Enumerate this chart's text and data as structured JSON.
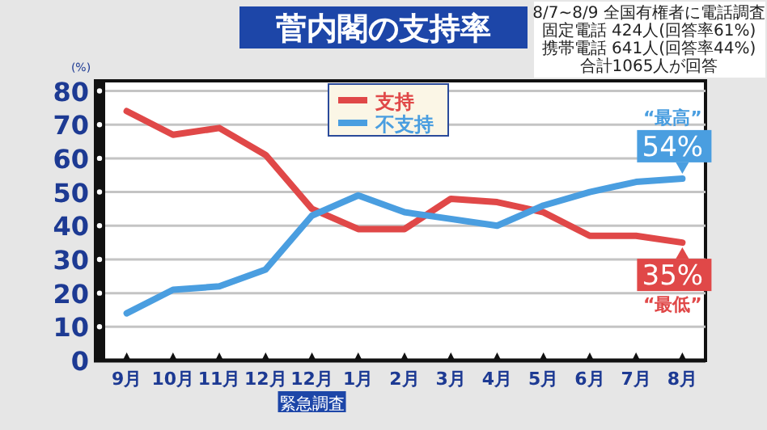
{
  "chart_data": {
    "type": "line",
    "title": "菅内閣の支持率",
    "ylabel": "(%)",
    "categories": [
      "9月",
      "10月",
      "11月",
      "12月",
      "12月緊急調査",
      "1月",
      "2月",
      "3月",
      "4月",
      "5月",
      "6月",
      "7月",
      "8月"
    ],
    "series": [
      {
        "name": "支持",
        "color": "#e04848",
        "values": [
          74,
          67,
          69,
          61,
          45,
          39,
          39,
          48,
          47,
          44,
          37,
          37,
          35
        ]
      },
      {
        "name": "不支持",
        "color": "#4a9ee0",
        "values": [
          14,
          21,
          22,
          27,
          43,
          49,
          44,
          42,
          40,
          46,
          50,
          53,
          54
        ]
      }
    ],
    "ylim": [
      0,
      83
    ],
    "yticks": [
      0,
      10,
      20,
      30,
      40,
      50,
      60,
      70,
      80
    ],
    "grid": "y",
    "legend": "top",
    "marker": "none",
    "line_style": "solid",
    "annotations": [
      {
        "text": "“最高”",
        "x": "8月",
        "y": 54
      },
      {
        "text": "54%",
        "x": "8月",
        "y": 54
      },
      {
        "text": "35%",
        "x": "8月",
        "y": 35
      },
      {
        "text": "“最低”",
        "x": "8月",
        "y": 35
      },
      "8/7~8/9 全国有権者に電話調査",
      "固定電話 424人(回答率61%)",
      "携帯電話 641人(回答率44%)",
      "合計1065人が回答"
    ]
  }
}
